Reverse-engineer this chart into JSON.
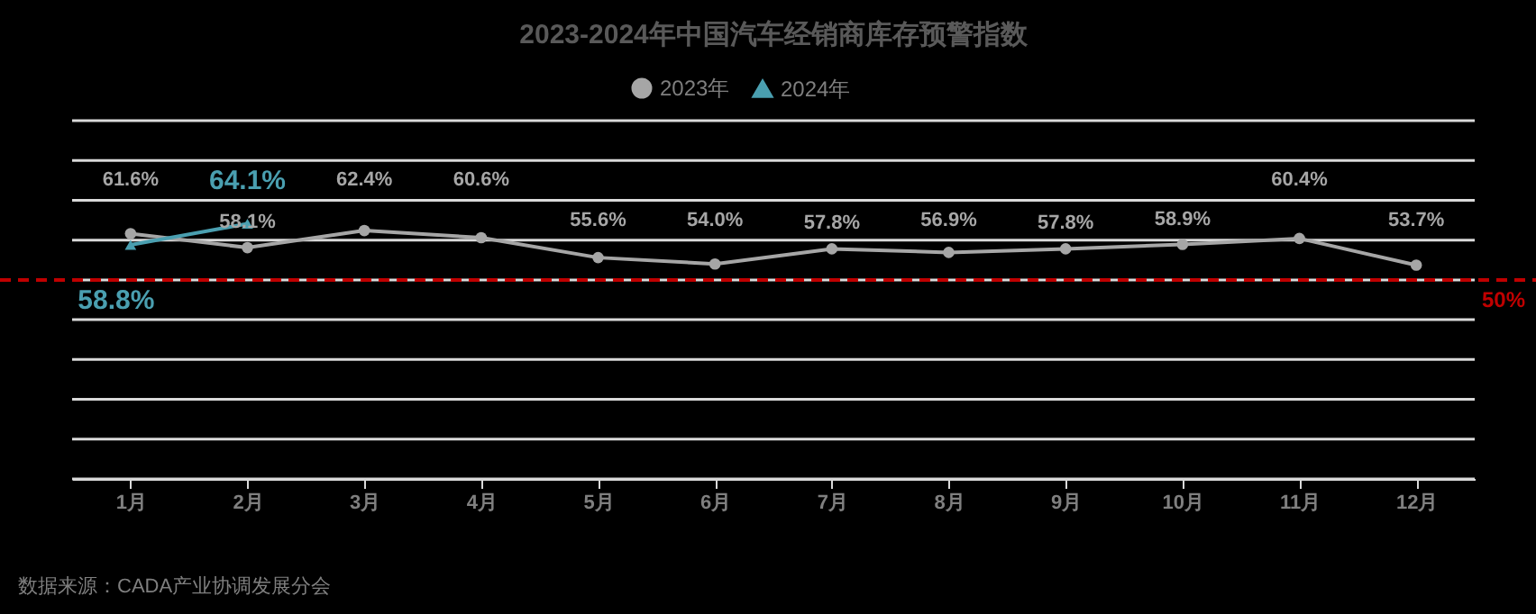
{
  "chart_data": {
    "type": "line",
    "title": "2023-2024年中国汽车经销商库存预警指数",
    "categories": [
      "1月",
      "2月",
      "3月",
      "4月",
      "5月",
      "6月",
      "7月",
      "8月",
      "9月",
      "10月",
      "11月",
      "12月"
    ],
    "series": [
      {
        "name": "2023年",
        "color": "#a6a6a6",
        "marker": "circle",
        "values": [
          61.6,
          58.1,
          62.4,
          60.6,
          55.6,
          54.0,
          57.8,
          56.9,
          57.8,
          58.9,
          60.4,
          53.7
        ],
        "value_labels": [
          "61.6%",
          "58.1%",
          "62.4%",
          "60.6%",
          "55.6%",
          "54.0%",
          "57.8%",
          "56.9%",
          "57.8%",
          "58.9%",
          "60.4%",
          "53.7%"
        ]
      },
      {
        "name": "2024年",
        "color": "#4a9fb0",
        "marker": "triangle",
        "values": [
          58.8,
          64.1,
          null,
          null,
          null,
          null,
          null,
          null,
          null,
          null,
          null,
          null
        ],
        "value_labels": [
          "58.8%",
          "64.1%",
          null,
          null,
          null,
          null,
          null,
          null,
          null,
          null,
          null,
          null
        ]
      }
    ],
    "ylim": [
      0,
      90
    ],
    "yticks": [
      {
        "value": 0,
        "label": null
      },
      {
        "value": 10,
        "label": null
      },
      {
        "value": 20,
        "label": null
      },
      {
        "value": 30,
        "label": null
      },
      {
        "value": 40,
        "label": null
      },
      {
        "value": 50,
        "label": null
      },
      {
        "value": 60,
        "label": null
      },
      {
        "value": 70,
        "label": null
      },
      {
        "value": 80,
        "label": null
      },
      {
        "value": 90,
        "label": null
      }
    ],
    "tick_labels": "x",
    "grid": "y",
    "legend": "top",
    "ref_lines": [
      {
        "axis": "y",
        "value": 50,
        "label": "50%",
        "color": "#c00000",
        "line_style": "dashed"
      }
    ],
    "annotations": [
      "数据来源：CADA产业协调发展分会"
    ]
  }
}
